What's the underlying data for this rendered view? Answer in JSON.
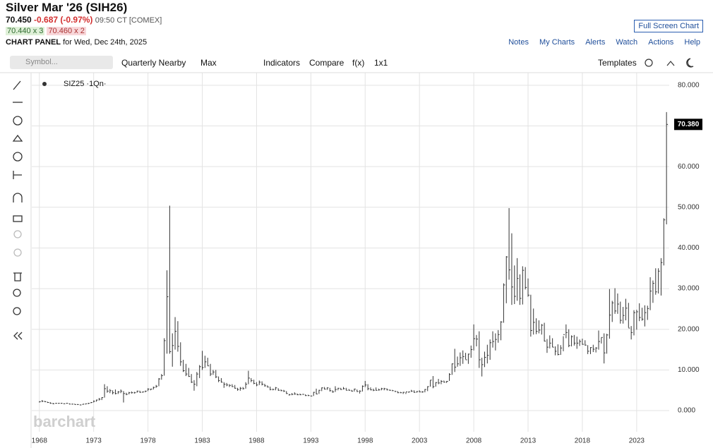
{
  "header": {
    "title": "Silver Mar '26 (SIH26)",
    "price": "70.450",
    "change": "-0.687 (-0.97%)",
    "time": "09:50 CT [COMEX]",
    "bid": "70.440 x 3",
    "ask": "70.460 x 2",
    "panel": "CHART PANEL",
    "panel_date": "for Wed, Dec 24th, 2025",
    "full_screen": "Full Screen Chart",
    "links": [
      "Notes",
      "My Charts",
      "Alerts",
      "Watch",
      "Actions",
      "Help"
    ]
  },
  "toolbar": {
    "symbol_placeholder": "Symbol...",
    "items": [
      "Quarterly Nearby",
      "Max",
      "Indicators",
      "Compare",
      "f(x)",
      "1x1"
    ],
    "templates": "Templates"
  },
  "watermark": "barchart",
  "chart_data": {
    "type": "ohlc",
    "legend_label": "SIZ25 ·1Qn·",
    "color": "#333333",
    "grid": true,
    "xlim": [
      1967.3,
      2026.0
    ],
    "xticks": [
      1968,
      1973,
      1978,
      1983,
      1988,
      1993,
      1998,
      2003,
      2008,
      2013,
      2018,
      2023
    ],
    "ylim": [
      -5.2,
      83.1
    ],
    "yticks": [
      {
        "value": 0,
        "label": "0.000"
      },
      {
        "value": 10,
        "label": "10.000"
      },
      {
        "value": 20,
        "label": "20.000"
      },
      {
        "value": 30,
        "label": "30.000"
      },
      {
        "value": 40,
        "label": "40.000"
      },
      {
        "value": 50,
        "label": "50.000"
      },
      {
        "value": 60,
        "label": "60.000"
      },
      {
        "value": 70,
        "label": "70.000"
      },
      {
        "value": 80,
        "label": "80.000"
      }
    ],
    "last_price": {
      "value": 70.38,
      "label": "70.380"
    },
    "x": [
      1968,
      1968.25,
      1968.5,
      1968.75,
      1969,
      1969.25,
      1969.5,
      1969.75,
      1970,
      1970.25,
      1970.5,
      1970.75,
      1971,
      1971.25,
      1971.5,
      1971.75,
      1972,
      1972.25,
      1972.5,
      1972.75,
      1973,
      1973.25,
      1973.5,
      1973.75,
      1974,
      1974.25,
      1974.5,
      1974.75,
      1975,
      1975.25,
      1975.5,
      1975.75,
      1976,
      1976.25,
      1976.5,
      1976.75,
      1977,
      1977.25,
      1977.5,
      1977.75,
      1978,
      1978.25,
      1978.5,
      1978.75,
      1979,
      1979.25,
      1979.5,
      1979.75,
      1980,
      1980.25,
      1980.5,
      1980.75,
      1981,
      1981.25,
      1981.5,
      1981.75,
      1982,
      1982.25,
      1982.5,
      1982.75,
      1983,
      1983.25,
      1983.5,
      1983.75,
      1984,
      1984.25,
      1984.5,
      1984.75,
      1985,
      1985.25,
      1985.5,
      1985.75,
      1986,
      1986.25,
      1986.5,
      1986.75,
      1987,
      1987.25,
      1987.5,
      1987.75,
      1988,
      1988.25,
      1988.5,
      1988.75,
      1989,
      1989.25,
      1989.5,
      1989.75,
      1990,
      1990.25,
      1990.5,
      1990.75,
      1991,
      1991.25,
      1991.5,
      1991.75,
      1992,
      1992.25,
      1992.5,
      1992.75,
      1993,
      1993.25,
      1993.5,
      1993.75,
      1994,
      1994.25,
      1994.5,
      1994.75,
      1995,
      1995.25,
      1995.5,
      1995.75,
      1996,
      1996.25,
      1996.5,
      1996.75,
      1997,
      1997.25,
      1997.5,
      1997.75,
      1998,
      1998.25,
      1998.5,
      1998.75,
      1999,
      1999.25,
      1999.5,
      1999.75,
      2000,
      2000.25,
      2000.5,
      2000.75,
      2001,
      2001.25,
      2001.5,
      2001.75,
      2002,
      2002.25,
      2002.5,
      2002.75,
      2003,
      2003.25,
      2003.5,
      2003.75,
      2004,
      2004.25,
      2004.5,
      2004.75,
      2005,
      2005.25,
      2005.5,
      2005.75,
      2006,
      2006.25,
      2006.5,
      2006.75,
      2007,
      2007.25,
      2007.5,
      2007.75,
      2008,
      2008.25,
      2008.5,
      2008.75,
      2009,
      2009.25,
      2009.5,
      2009.75,
      2010,
      2010.25,
      2010.5,
      2010.75,
      2011,
      2011.25,
      2011.5,
      2011.75,
      2012,
      2012.25,
      2012.5,
      2012.75,
      2013,
      2013.25,
      2013.5,
      2013.75,
      2014,
      2014.25,
      2014.5,
      2014.75,
      2015,
      2015.25,
      2015.5,
      2015.75,
      2016,
      2016.25,
      2016.5,
      2016.75,
      2017,
      2017.25,
      2017.5,
      2017.75,
      2018,
      2018.25,
      2018.5,
      2018.75,
      2019,
      2019.25,
      2019.5,
      2019.75,
      2020,
      2020.25,
      2020.5,
      2020.75,
      2021,
      2021.25,
      2021.5,
      2021.75,
      2022,
      2022.25,
      2022.5,
      2022.75,
      2023,
      2023.25,
      2023.5,
      2023.75,
      2024,
      2024.25,
      2024.5,
      2024.75,
      2025,
      2025.25,
      2025.5,
      2025.75
    ],
    "high": [
      2.3,
      2.6,
      2.4,
      2.2,
      2.1,
      1.9,
      1.9,
      1.9,
      1.9,
      1.8,
      1.9,
      1.8,
      1.7,
      1.7,
      1.6,
      1.5,
      1.6,
      1.7,
      1.9,
      2.1,
      2.5,
      2.7,
      3.1,
      3.3,
      6.5,
      6.0,
      5.3,
      5.0,
      5.2,
      4.8,
      5.2,
      4.8,
      4.4,
      4.6,
      4.7,
      4.6,
      4.9,
      4.9,
      4.7,
      4.9,
      5.5,
      5.4,
      5.9,
      6.3,
      8.0,
      9.0,
      17.8,
      34.5,
      50.4,
      19.0,
      23.0,
      22.0,
      16.8,
      12.5,
      11.5,
      10.5,
      9.0,
      7.5,
      9.5,
      11.2,
      14.7,
      13.5,
      13.0,
      11.5,
      10.0,
      10.0,
      8.4,
      8.0,
      7.0,
      6.8,
      6.5,
      6.5,
      6.3,
      5.6,
      5.8,
      5.8,
      7.0,
      9.8,
      8.0,
      7.6,
      7.0,
      7.4,
      7.2,
      6.6,
      6.2,
      5.9,
      5.4,
      5.8,
      5.5,
      5.2,
      5.1,
      4.8,
      4.1,
      4.3,
      4.5,
      4.2,
      4.2,
      4.1,
      4.0,
      3.9,
      3.7,
      4.6,
      5.4,
      5.1,
      5.7,
      5.8,
      5.7,
      5.6,
      5.0,
      6.0,
      5.6,
      5.6,
      5.8,
      5.6,
      5.3,
      5.1,
      5.4,
      5.2,
      5.0,
      6.2,
      7.3,
      6.5,
      5.7,
      5.4,
      5.7,
      5.4,
      5.6,
      5.6,
      5.5,
      5.2,
      5.1,
      4.9,
      4.8,
      4.6,
      4.6,
      4.5,
      4.7,
      5.1,
      5.0,
      4.8,
      5.0,
      4.8,
      5.3,
      6.0,
      7.5,
      8.5,
      7.0,
      7.8,
      7.5,
      7.4,
      7.3,
      9.2,
      11.6,
      15.2,
      13.3,
      14.3,
      14.8,
      14.2,
      14.0,
      16.0,
      21.2,
      18.6,
      19.5,
      13.0,
      14.5,
      16.2,
      17.5,
      19.5,
      19.0,
      19.8,
      22.0,
      31.3,
      38.0,
      49.8,
      43.6,
      35.7,
      37.5,
      33.5,
      35.5,
      35.3,
      32.5,
      28.5,
      25.1,
      22.7,
      22.2,
      21.3,
      21.6,
      17.6,
      18.5,
      17.8,
      15.8,
      16.3,
      16.1,
      18.3,
      21.2,
      20.0,
      18.5,
      18.6,
      18.2,
      17.5,
      17.7,
      17.3,
      16.1,
      15.6,
      16.2,
      15.6,
      19.7,
      18.0,
      19.0,
      18.9,
      29.9,
      27.0,
      30.1,
      28.8,
      26.8,
      25.5,
      27.5,
      26.5,
      20.8,
      24.7,
      24.8,
      26.4,
      25.3,
      25.9,
      25.8,
      32.8,
      32.0,
      35.0,
      35.0,
      37.5,
      47.3,
      73.4
    ],
    "low": [
      2.0,
      2.1,
      2.1,
      1.9,
      1.7,
      1.6,
      1.7,
      1.7,
      1.7,
      1.6,
      1.7,
      1.6,
      1.5,
      1.5,
      1.4,
      1.3,
      1.4,
      1.5,
      1.6,
      1.8,
      2.0,
      2.2,
      2.5,
      2.6,
      3.2,
      4.4,
      4.3,
      4.0,
      4.0,
      4.1,
      4.3,
      2.0,
      3.8,
      4.0,
      4.2,
      4.2,
      4.4,
      4.4,
      4.4,
      4.5,
      4.8,
      5.0,
      5.2,
      5.6,
      6.0,
      7.6,
      8.6,
      14.0,
      14.0,
      10.8,
      15.0,
      14.5,
      11.0,
      9.5,
      8.5,
      8.3,
      6.8,
      4.9,
      6.0,
      8.0,
      10.0,
      10.5,
      11.0,
      8.5,
      8.8,
      8.0,
      7.0,
      6.9,
      5.6,
      6.0,
      5.8,
      5.8,
      5.4,
      4.9,
      4.9,
      5.2,
      5.4,
      6.5,
      7.0,
      6.5,
      6.0,
      6.3,
      6.2,
      5.9,
      5.7,
      5.0,
      5.0,
      5.0,
      4.9,
      4.8,
      4.6,
      4.1,
      3.7,
      3.8,
      3.9,
      3.8,
      3.8,
      3.9,
      3.6,
      3.6,
      3.5,
      3.6,
      4.0,
      4.1,
      4.8,
      5.2,
      5.1,
      4.7,
      4.4,
      4.6,
      5.0,
      5.1,
      5.2,
      5.0,
      4.9,
      4.7,
      4.7,
      4.6,
      4.2,
      4.7,
      5.8,
      5.0,
      5.0,
      4.8,
      4.9,
      4.9,
      5.0,
      5.0,
      5.0,
      4.9,
      4.8,
      4.6,
      4.3,
      4.3,
      4.1,
      4.1,
      4.4,
      4.6,
      4.4,
      4.4,
      4.5,
      4.4,
      4.5,
      4.8,
      5.9,
      5.5,
      5.9,
      6.5,
      6.5,
      6.9,
      6.8,
      7.3,
      8.8,
      9.5,
      10.8,
      11.0,
      11.5,
      12.6,
      11.5,
      13.0,
      14.8,
      15.8,
      10.5,
      8.4,
      10.7,
      11.6,
      12.5,
      15.5,
      14.8,
      16.7,
      17.3,
      21.6,
      26.4,
      32.2,
      26.0,
      26.2,
      27.0,
      26.0,
      26.1,
      29.8,
      28.0,
      18.2,
      18.7,
      18.8,
      19.0,
      18.7,
      17.0,
      14.2,
      15.3,
      15.6,
      13.6,
      13.6,
      13.7,
      14.6,
      17.8,
      15.6,
      15.8,
      16.0,
      15.2,
      15.9,
      16.2,
      16.0,
      13.9,
      13.9,
      14.4,
      14.3,
      15.0,
      16.5,
      11.6,
      14.0,
      17.7,
      21.8,
      23.8,
      23.8,
      21.4,
      21.4,
      22.2,
      20.4,
      17.5,
      18.5,
      19.9,
      22.0,
      22.1,
      20.7,
      22.3,
      24.7,
      26.5,
      28.5,
      28.8,
      28.3,
      35.7,
      45.8
    ],
    "close": [
      2.2,
      2.3,
      2.2,
      2.0,
      1.8,
      1.7,
      1.8,
      1.8,
      1.8,
      1.7,
      1.8,
      1.6,
      1.6,
      1.5,
      1.5,
      1.4,
      1.6,
      1.7,
      1.8,
      2.0,
      2.3,
      2.6,
      2.8,
      3.2,
      5.4,
      4.8,
      4.9,
      4.4,
      4.2,
      4.6,
      4.8,
      4.2,
      4.0,
      4.4,
      4.4,
      4.4,
      4.8,
      4.5,
      4.6,
      4.8,
      5.3,
      5.3,
      5.7,
      6.0,
      7.8,
      8.6,
      17.2,
      28.0,
      14.5,
      16.0,
      19.5,
      15.8,
      12.0,
      9.8,
      9.0,
      8.4,
      7.0,
      6.5,
      9.0,
      10.8,
      10.6,
      12.0,
      11.0,
      9.0,
      9.5,
      8.3,
      7.4,
      7.0,
      6.5,
      6.3,
      6.2,
      5.9,
      5.5,
      5.2,
      5.5,
      5.4,
      6.5,
      8.0,
      7.4,
      6.7,
      6.3,
      7.0,
      6.5,
      6.1,
      5.8,
      5.2,
      5.2,
      5.6,
      5.0,
      4.9,
      4.8,
      4.2,
      3.9,
      4.0,
      4.1,
      3.9,
      3.9,
      4.0,
      3.7,
      3.7,
      3.6,
      4.5,
      4.1,
      5.0,
      5.6,
      5.3,
      5.6,
      4.9,
      4.6,
      5.2,
      5.5,
      5.2,
      5.4,
      5.0,
      5.0,
      4.8,
      5.3,
      4.7,
      4.8,
      6.0,
      6.3,
      5.4,
      5.1,
      5.0,
      5.0,
      5.1,
      5.4,
      5.4,
      5.1,
      5.0,
      4.9,
      4.7,
      4.4,
      4.4,
      4.5,
      4.6,
      4.6,
      4.8,
      4.5,
      4.7,
      4.6,
      4.6,
      5.2,
      5.9,
      7.5,
      5.9,
      6.9,
      6.8,
      7.2,
      7.0,
      7.2,
      8.9,
      11.5,
      10.7,
      11.5,
      13.0,
      13.3,
      12.5,
      13.9,
      15.0,
      17.7,
      17.6,
      12.5,
      11.3,
      13.1,
      13.6,
      16.7,
      17.0,
      17.5,
      18.7,
      21.8,
      30.9,
      37.8,
      34.6,
      30.4,
      28.1,
      32.5,
      27.6,
      34.5,
      30.3,
      28.4,
      19.7,
      21.7,
      19.5,
      19.8,
      21.0,
      17.1,
      15.6,
      16.6,
      15.6,
      14.6,
      13.8,
      15.4,
      18.7,
      19.2,
      16.0,
      18.2,
      16.6,
      16.6,
      17.0,
      16.3,
      16.1,
      14.6,
      15.5,
      15.1,
      15.4,
      17.0,
      18.0,
      14.2,
      18.6,
      23.5,
      26.5,
      24.5,
      26.2,
      22.2,
      23.4,
      25.2,
      20.3,
      19.2,
      24.1,
      24.3,
      22.9,
      22.5,
      24.1,
      25.1,
      29.4,
      31.3,
      29.2,
      34.3,
      36.4,
      46.9,
      70.38
    ]
  }
}
